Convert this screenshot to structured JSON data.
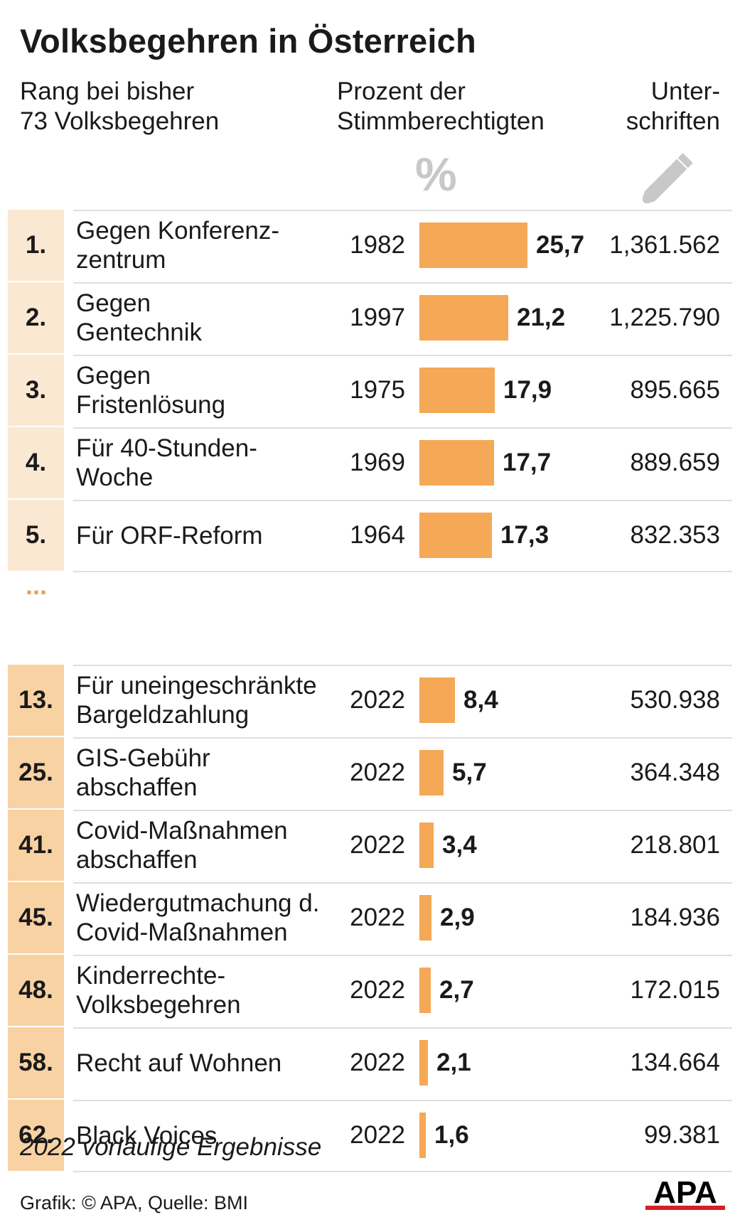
{
  "title": "Volksbegehren in Österreich",
  "headers": {
    "rank": "Rang bei bisher\n73 Volksbegehren",
    "percent": "Prozent der\nStimmberechtigten",
    "signatures": "Unter-\nschriften",
    "percent_symbol": "%"
  },
  "ellipsis": "...",
  "note": "2022 vorläufige Ergebnisse",
  "source": "Grafik: © APA, Quelle: BMI",
  "logo_text": "APA",
  "colors": {
    "bar": "#f5a855",
    "rank_light": "#fbe8d2",
    "rank_dark": "#f9d2a4",
    "ellipsis": "#e7a35b",
    "icon_grey": "#c8c8c8"
  },
  "chart_data": {
    "type": "bar",
    "orientation": "horizontal",
    "title": "Volksbegehren in Österreich",
    "rows": [
      {
        "rank": "1.",
        "name": "Gegen Konferenz-\nzentrum",
        "year": "1982",
        "value": 25.7,
        "value_label": "25,7",
        "signatures": "1,361.562",
        "group": "top"
      },
      {
        "rank": "2.",
        "name": "Gegen\nGentechnik",
        "year": "1997",
        "value": 21.2,
        "value_label": "21,2",
        "signatures": "1,225.790",
        "group": "top"
      },
      {
        "rank": "3.",
        "name": "Gegen\nFristenlösung",
        "year": "1975",
        "value": 17.9,
        "value_label": "17,9",
        "signatures": "895.665",
        "group": "top"
      },
      {
        "rank": "4.",
        "name": "Für 40-Stunden-\nWoche",
        "year": "1969",
        "value": 17.7,
        "value_label": "17,7",
        "signatures": "889.659",
        "group": "top"
      },
      {
        "rank": "5.",
        "name": "Für ORF-Reform",
        "year": "1964",
        "value": 17.3,
        "value_label": "17,3",
        "signatures": "832.353",
        "group": "top"
      },
      {
        "rank": "13.",
        "name": "Für uneingeschränkte\nBargeldzahlung",
        "year": "2022",
        "value": 8.4,
        "value_label": "8,4",
        "signatures": "530.938",
        "group": "recent"
      },
      {
        "rank": "25.",
        "name": "GIS-Gebühr\nabschaffen",
        "year": "2022",
        "value": 5.7,
        "value_label": "5,7",
        "signatures": "364.348",
        "group": "recent"
      },
      {
        "rank": "41.",
        "name": "Covid-Maßnahmen\nabschaffen",
        "year": "2022",
        "value": 3.4,
        "value_label": "3,4",
        "signatures": "218.801",
        "group": "recent"
      },
      {
        "rank": "45.",
        "name": "Wiedergutmachung d.\nCovid-Maßnahmen",
        "year": "2022",
        "value": 2.9,
        "value_label": "2,9",
        "signatures": "184.936",
        "group": "recent"
      },
      {
        "rank": "48.",
        "name": "Kinderrechte-\nVolksbegehren",
        "year": "2022",
        "value": 2.7,
        "value_label": "2,7",
        "signatures": "172.015",
        "group": "recent"
      },
      {
        "rank": "58.",
        "name": "Recht auf Wohnen",
        "year": "2022",
        "value": 2.1,
        "value_label": "2,1",
        "signatures": "134.664",
        "group": "recent"
      },
      {
        "rank": "62.",
        "name": "Black Voices",
        "year": "2022",
        "value": 1.6,
        "value_label": "1,6",
        "signatures": "99.381",
        "group": "recent"
      }
    ]
  }
}
